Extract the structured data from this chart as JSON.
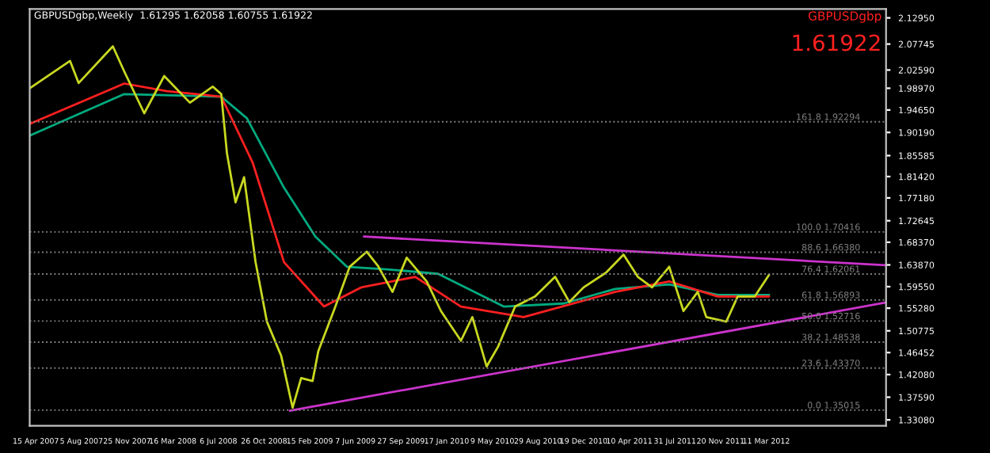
{
  "chart_data": {
    "type": "line",
    "title": "GBPUSDgbp,Weekly  1.61295 1.62058 1.60755 1.61922",
    "annotations": [
      "GBPUSDgbp",
      "1.61922"
    ],
    "xlim": [
      "2007-03-31",
      "2012-12-30"
    ],
    "xticks": [
      {
        "value": "2007-04-15",
        "label": "15 Apr 2007"
      },
      {
        "value": "2007-08-05",
        "label": "5 Aug 2007"
      },
      {
        "value": "2007-11-25",
        "label": "25 Nov 2007"
      },
      {
        "value": "2008-03-16",
        "label": "16 Mar 2008"
      },
      {
        "value": "2008-07-06",
        "label": "6 Jul 2008"
      },
      {
        "value": "2008-10-26",
        "label": "26 Oct 2008"
      },
      {
        "value": "2009-02-15",
        "label": "15 Feb 2009"
      },
      {
        "value": "2009-06-07",
        "label": "7 Jun 2009"
      },
      {
        "value": "2009-09-27",
        "label": "27 Sep 2009"
      },
      {
        "value": "2010-01-17",
        "label": "17 Jan 2010"
      },
      {
        "value": "2010-05-09",
        "label": "9 May 2010"
      },
      {
        "value": "2010-08-29",
        "label": "29 Aug 2010"
      },
      {
        "value": "2010-12-19",
        "label": "19 Dec 2010"
      },
      {
        "value": "2011-04-10",
        "label": "10 Apr 2011"
      },
      {
        "value": "2011-07-31",
        "label": "31 Jul 2011"
      },
      {
        "value": "2011-11-20",
        "label": "20 Nov 2011"
      },
      {
        "value": "2012-03-11",
        "label": "11 Mar 2012"
      }
    ],
    "ylim": [
      1.319,
      2.147
    ],
    "yticks": [
      {
        "value": 1.3308,
        "label": "1.33080"
      },
      {
        "value": 1.3759,
        "label": "1.37590"
      },
      {
        "value": 1.4208,
        "label": "1.42080"
      },
      {
        "value": 1.46452,
        "label": "1.46452"
      },
      {
        "value": 1.50775,
        "label": "1.50775"
      },
      {
        "value": 1.5528,
        "label": "1.55280"
      },
      {
        "value": 1.5955,
        "label": "1.59550"
      },
      {
        "value": 1.6387,
        "label": "1.63870"
      },
      {
        "value": 1.6837,
        "label": "1.68370"
      },
      {
        "value": 1.72645,
        "label": "1.72645"
      },
      {
        "value": 1.7718,
        "label": "1.77180"
      },
      {
        "value": 1.8142,
        "label": "1.81420"
      },
      {
        "value": 1.85585,
        "label": "1.85585"
      },
      {
        "value": 1.9019,
        "label": "1.90190"
      },
      {
        "value": 1.9465,
        "label": "1.94650"
      },
      {
        "value": 1.9897,
        "label": "1.98970"
      },
      {
        "value": 2.0259,
        "label": "2.02590"
      },
      {
        "value": 2.07745,
        "label": "2.07745"
      },
      {
        "value": 2.1295,
        "label": "2.12950"
      }
    ],
    "grid": false,
    "legend": false,
    "marker": "none",
    "line_style": "solid",
    "ref_lines": [
      {
        "axis": "y",
        "value": 1.35015,
        "label": "0.0 1.35015",
        "color": "#808080",
        "line_style": "dotted"
      },
      {
        "axis": "y",
        "value": 1.4337,
        "label": "23.6 1.43370",
        "color": "#808080",
        "line_style": "dotted"
      },
      {
        "axis": "y",
        "value": 1.48538,
        "label": "38.2 1.48538",
        "color": "#808080",
        "line_style": "dotted"
      },
      {
        "axis": "y",
        "value": 1.52716,
        "label": "50.0 1.52716",
        "color": "#808080",
        "line_style": "dotted"
      },
      {
        "axis": "y",
        "value": 1.56893,
        "label": "61.8 1.56893",
        "color": "#808080",
        "line_style": "dotted"
      },
      {
        "axis": "y",
        "value": 1.62061,
        "label": "76.4 1.62061",
        "color": "#808080",
        "line_style": "dotted"
      },
      {
        "axis": "y",
        "value": 1.6638,
        "label": "88.6 1.66380",
        "color": "#808080",
        "line_style": "dotted"
      },
      {
        "axis": "y",
        "value": 1.70416,
        "label": "100.0 1.70416",
        "color": "#808080",
        "line_style": "dotted"
      },
      {
        "axis": "y",
        "value": 1.92294,
        "label": "161.8 1.92294",
        "color": "#808080",
        "line_style": "dotted"
      }
    ],
    "series": [
      {
        "color": "#00aa7f",
        "x": [
          "2007-04-01",
          "2007-11-18",
          "2008-07-13",
          "2008-09-14",
          "2008-12-14",
          "2009-03-01",
          "2009-05-17",
          "2009-08-23",
          "2009-12-27",
          "2010-06-06",
          "2010-10-31",
          "2011-03-06",
          "2011-07-17",
          "2011-11-13",
          "2012-03-18"
        ],
        "values": [
          1.896,
          1.978,
          1.973,
          1.93,
          1.792,
          1.695,
          1.635,
          1.63,
          1.621,
          1.556,
          1.562,
          1.591,
          1.6,
          1.579,
          1.579
        ]
      },
      {
        "color": "#ff2020",
        "x": [
          "2007-04-01",
          "2007-11-18",
          "2008-03-02",
          "2008-07-13",
          "2008-09-28",
          "2008-12-14",
          "2009-03-22",
          "2009-06-21",
          "2009-11-01",
          "2010-02-21",
          "2010-07-25",
          "2011-03-06",
          "2011-07-17",
          "2011-11-13",
          "2012-03-18"
        ],
        "values": [
          1.919,
          1.999,
          1.984,
          1.973,
          1.842,
          1.644,
          1.556,
          1.594,
          1.615,
          1.556,
          1.535,
          1.585,
          1.606,
          1.576,
          1.576
        ]
      },
      {
        "color": "#c8d820",
        "x": [
          "2007-04-01",
          "2007-07-08",
          "2007-07-29",
          "2007-10-21",
          "2007-11-18",
          "2008-01-06",
          "2008-02-24",
          "2008-04-27",
          "2008-06-22",
          "2008-07-13",
          "2008-07-27",
          "2008-08-17",
          "2008-09-07",
          "2008-10-05",
          "2008-11-02",
          "2008-12-07",
          "2009-01-04",
          "2009-01-25",
          "2009-02-22",
          "2009-03-08",
          "2009-04-19",
          "2009-05-24",
          "2009-07-05",
          "2009-08-02",
          "2009-09-06",
          "2009-10-11",
          "2009-11-29",
          "2010-01-03",
          "2010-02-21",
          "2010-03-21",
          "2010-04-25",
          "2010-05-23",
          "2010-07-04",
          "2010-08-22",
          "2010-10-10",
          "2010-11-14",
          "2010-12-19",
          "2011-02-13",
          "2011-03-27",
          "2011-05-01",
          "2011-06-05",
          "2011-07-17",
          "2011-08-21",
          "2011-09-25",
          "2011-10-16",
          "2011-12-04",
          "2012-01-01",
          "2012-02-12",
          "2012-03-18"
        ],
        "values": [
          1.99,
          2.044,
          2.0,
          2.073,
          2.023,
          1.94,
          2.014,
          1.961,
          1.993,
          1.978,
          1.86,
          1.763,
          1.813,
          1.645,
          1.526,
          1.458,
          1.355,
          1.414,
          1.408,
          1.467,
          1.556,
          1.635,
          1.665,
          1.636,
          1.585,
          1.653,
          1.606,
          1.547,
          1.488,
          1.535,
          1.437,
          1.476,
          1.556,
          1.576,
          1.615,
          1.565,
          1.594,
          1.624,
          1.659,
          1.615,
          1.594,
          1.635,
          1.547,
          1.585,
          1.535,
          1.526,
          1.576,
          1.576,
          1.619
        ]
      },
      {
        "color": "#cc33cc",
        "x": [
          "2009-06-28",
          "2012-12-30"
        ],
        "values": [
          1.695,
          1.638
        ]
      },
      {
        "color": "#cc33cc",
        "x": [
          "2008-12-28",
          "2012-12-30"
        ],
        "values": [
          1.349,
          1.564
        ]
      }
    ]
  }
}
